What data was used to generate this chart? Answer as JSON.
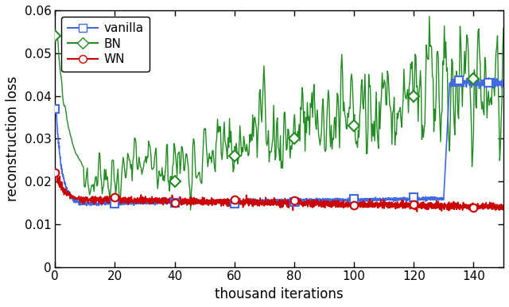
{
  "title": "",
  "xlabel": "thousand iterations",
  "ylabel": "reconstruction loss",
  "xlim": [
    0,
    150
  ],
  "ylim": [
    0,
    0.06
  ],
  "yticks": [
    0,
    0.01,
    0.02,
    0.03,
    0.04,
    0.05,
    0.06
  ],
  "xticks": [
    0,
    20,
    40,
    60,
    80,
    100,
    120,
    140
  ],
  "legend_labels": [
    "vanilla",
    "BN",
    "WN"
  ],
  "vanilla_color": "#4169e1",
  "bn_color": "#228b22",
  "wn_color": "#cc0000",
  "figsize": [
    6.4,
    3.86
  ],
  "dpi": 100,
  "van_marker_x": [
    0,
    20,
    40,
    60,
    80,
    100,
    120,
    135,
    145
  ],
  "bn_marker_x": [
    0,
    40,
    60,
    80,
    100,
    120,
    140
  ],
  "bn_marker_y": [
    0.054,
    0.02,
    0.026,
    0.03,
    0.033,
    0.04,
    0.044
  ],
  "wn_marker_x": [
    0,
    20,
    40,
    60,
    80,
    100,
    120,
    140
  ]
}
